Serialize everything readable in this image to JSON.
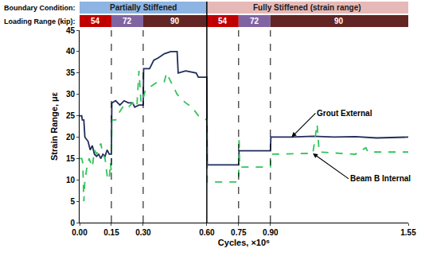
{
  "chart_data": {
    "type": "line",
    "x_title": "Cycles, ×10⁶",
    "y_title": "Strain Range, με",
    "xlim": [
      0,
      1.55
    ],
    "xticks": [
      {
        "value": 0,
        "label": "0.00"
      },
      0.15,
      {
        "value": 0.3,
        "label": "0.30"
      },
      {
        "value": 0.6,
        "label": "0.60"
      },
      0.75,
      {
        "value": 0.9,
        "label": "0.90"
      },
      1.55
    ],
    "ylim": [
      0,
      45
    ],
    "yticks": [
      0,
      5,
      10,
      15,
      20,
      25,
      30,
      35,
      40,
      45
    ],
    "grid": false,
    "series": [
      {
        "name": "Grout External",
        "color": "#1f2d5a",
        "line_style": "solid",
        "x": [
          0,
          0.01,
          0.013,
          0.02,
          0.025,
          0.04,
          0.05,
          0.06,
          0.07,
          0.08,
          0.09,
          0.1,
          0.11,
          0.12,
          0.13,
          0.14,
          0.15,
          0.152,
          0.17,
          0.19,
          0.21,
          0.23,
          0.25,
          0.26,
          0.28,
          0.3,
          0.302,
          0.33,
          0.35,
          0.37,
          0.4,
          0.43,
          0.46,
          0.465,
          0.5,
          0.55,
          0.56,
          0.6,
          0.602,
          0.75,
          0.752,
          0.9,
          0.902,
          1.0,
          1.1,
          1.2,
          1.3,
          1.4,
          1.55
        ],
        "values": [
          25,
          25,
          24,
          24,
          20,
          19,
          17,
          18,
          16,
          15.5,
          16,
          15,
          16,
          15.5,
          17,
          16,
          16,
          28,
          28.5,
          27.5,
          28.5,
          28,
          28,
          27,
          27.5,
          27.5,
          36,
          36,
          38,
          38.5,
          39.5,
          40,
          40,
          35,
          35.5,
          35,
          34,
          34,
          13.5,
          13.5,
          16.8,
          16.8,
          20,
          20,
          20.2,
          20,
          20.1,
          19.8,
          20
        ]
      },
      {
        "name": "Beam B Internal",
        "color": "#33c45a",
        "line_style": "dashed",
        "x": [
          0,
          0.01,
          0.015,
          0.02,
          0.025,
          0.035,
          0.045,
          0.06,
          0.07,
          0.08,
          0.1,
          0.11,
          0.12,
          0.13,
          0.14,
          0.145,
          0.15,
          0.152,
          0.17,
          0.19,
          0.21,
          0.23,
          0.25,
          0.27,
          0.28,
          0.29,
          0.3,
          0.31,
          0.34,
          0.37,
          0.4,
          0.41,
          0.43,
          0.46,
          0.5,
          0.53,
          0.56,
          0.6,
          0.602,
          0.75,
          0.752,
          0.755,
          0.9,
          0.902,
          1.1,
          1.12,
          1.13,
          1.3,
          1.35,
          1.36,
          1.55
        ],
        "values": [
          15,
          15,
          14,
          5,
          10,
          13,
          15,
          13,
          17,
          16,
          18.5,
          16,
          15,
          11,
          10,
          14,
          12,
          24,
          24,
          26,
          27.5,
          27,
          28,
          27,
          35.5,
          28,
          29,
          31,
          32,
          33,
          33,
          35,
          33,
          30,
          28,
          27,
          25,
          24,
          9.5,
          9.5,
          20,
          13,
          13,
          16,
          16.2,
          23,
          16.5,
          16,
          17.5,
          16.5,
          16.5
        ]
      }
    ],
    "header": {
      "boundary_label": "Boundary Condition:",
      "boundary_conditions": [
        {
          "label": "Partially Stiffened",
          "from": 0,
          "to": 0.6,
          "color": "#8db4e2"
        },
        {
          "label": "Fully Stiffened (strain range)",
          "from": 0.6,
          "to": 1.55,
          "color": "#e6b9b8"
        }
      ],
      "loading_label": "Loading Range (kip):",
      "loading_ranges": [
        {
          "value": 54,
          "from": 0,
          "to": 0.15,
          "color": "#c00000"
        },
        {
          "value": 72,
          "from": 0.15,
          "to": 0.3,
          "color": "#8064a2"
        },
        {
          "value": 90,
          "from": 0.3,
          "to": 0.6,
          "color": "#632523"
        },
        {
          "value": 54,
          "from": 0.6,
          "to": 0.75,
          "color": "#c00000"
        },
        {
          "value": 72,
          "from": 0.75,
          "to": 0.9,
          "color": "#8064a2"
        },
        {
          "value": 90,
          "from": 0.9,
          "to": 1.55,
          "color": "#632523"
        }
      ]
    }
  }
}
